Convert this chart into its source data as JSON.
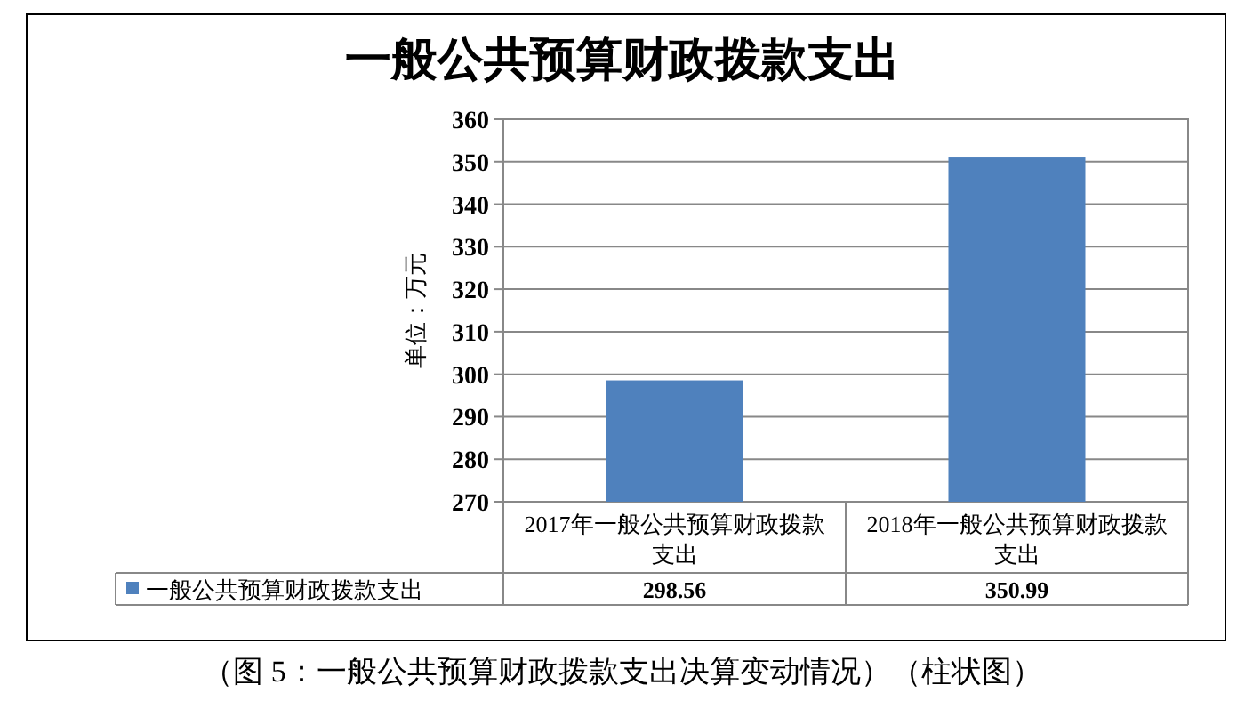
{
  "chart_data": {
    "type": "bar",
    "title": "一般公共预算财政拨款支出",
    "ylabel": "单位：万元",
    "categories": [
      "2017年一般公共预算财政拨款支出",
      "2018年一般公共预算财政拨款支出"
    ],
    "series": [
      {
        "name": "一般公共预算财政拨款支出",
        "color": "#4f81bd",
        "values": [
          298.56,
          350.99
        ]
      }
    ],
    "ylim": [
      270,
      360
    ],
    "yticks": [
      270,
      280,
      290,
      300,
      310,
      320,
      330,
      340,
      350,
      360
    ],
    "grid": "y",
    "legend": "bottom",
    "data_labels": true,
    "annotations": [
      "（图 5：一般公共预算财政拨款支出决算变动情况）（柱状图）"
    ]
  }
}
